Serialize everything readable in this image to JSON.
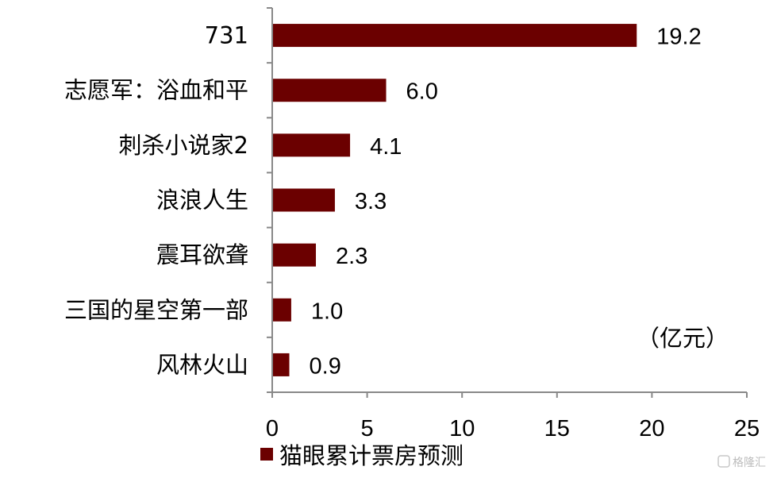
{
  "chart_data": {
    "type": "bar",
    "orientation": "horizontal",
    "categories": [
      "731",
      "志愿军：浴血和平",
      "刺杀小说家2",
      "浪浪人生",
      "震耳欲聋",
      "三国的星空第一部",
      "风林火山"
    ],
    "series": [
      {
        "name": "猫眼累计票房预测",
        "values": [
          19.2,
          6.0,
          4.1,
          3.3,
          2.3,
          1.0,
          0.9
        ],
        "color": "#6b0000"
      }
    ],
    "value_labels": [
      "19.2",
      "6.0",
      "4.1",
      "3.3",
      "2.3",
      "1.0",
      "0.9"
    ],
    "xlim": [
      0,
      25
    ],
    "xticks": [
      0,
      5,
      10,
      15,
      20,
      25
    ],
    "unit_annotation": "（亿元）",
    "legend_position": "bottom-left",
    "grid": false
  },
  "watermark": "格隆汇"
}
